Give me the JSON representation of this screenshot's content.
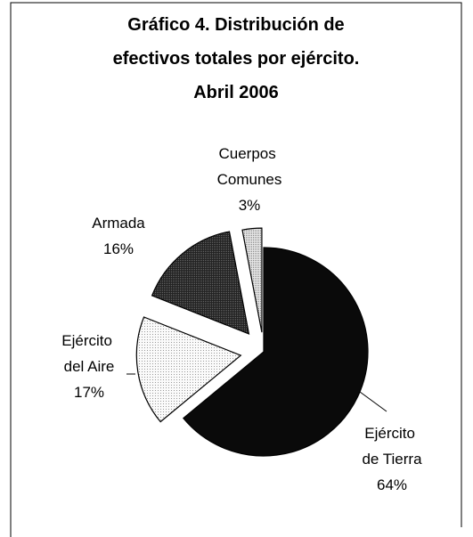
{
  "chart_data": {
    "type": "pie",
    "title": [
      "Gráfico 4. Distribución de",
      "efectivos totales por ejército.",
      "Abril  2006"
    ],
    "categories": [
      "Ejército de Tierra",
      "Ejército del Aire",
      "Armada",
      "Cuerpos Comunes"
    ],
    "values": [
      64,
      17,
      16,
      3
    ],
    "value_labels": [
      "64%",
      "17%",
      "16%",
      "3%"
    ],
    "colors": [
      "#0a0a0a",
      "#f4f4f4",
      "#2a2a2a",
      "#cfcfcf"
    ]
  }
}
